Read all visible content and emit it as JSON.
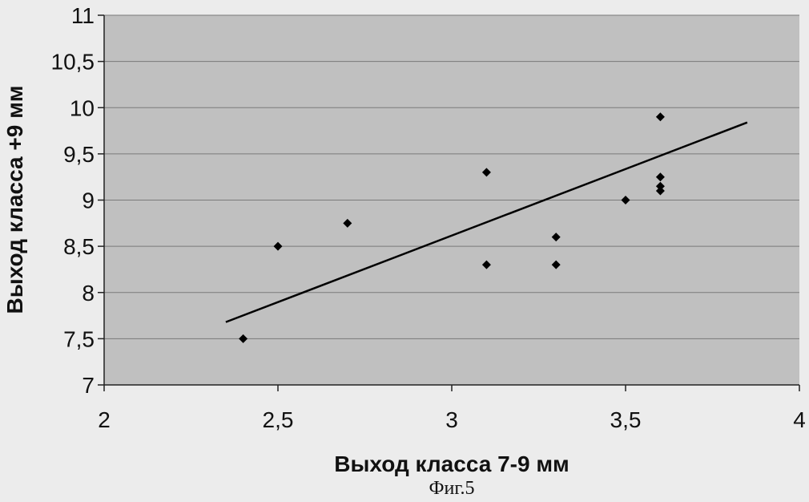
{
  "chart_data": {
    "type": "scatter",
    "xlabel": "Выход класса 7-9 мм",
    "ylabel": "Выход класса +9 мм",
    "xlim": [
      2,
      4
    ],
    "ylim": [
      7,
      11
    ],
    "x_ticks": [
      "2",
      "2,5",
      "3",
      "3,5",
      "4"
    ],
    "y_ticks": [
      "7",
      "7,5",
      "8",
      "8,5",
      "9",
      "9,5",
      "10",
      "10,5",
      "11"
    ],
    "grid": "horizontal",
    "points": [
      {
        "x": 2.4,
        "y": 7.5
      },
      {
        "x": 2.5,
        "y": 8.5
      },
      {
        "x": 2.7,
        "y": 8.75
      },
      {
        "x": 3.1,
        "y": 9.3
      },
      {
        "x": 3.1,
        "y": 8.3
      },
      {
        "x": 3.3,
        "y": 8.6
      },
      {
        "x": 3.3,
        "y": 8.3
      },
      {
        "x": 3.5,
        "y": 9.0
      },
      {
        "x": 3.6,
        "y": 9.9
      },
      {
        "x": 3.6,
        "y": 9.25
      },
      {
        "x": 3.6,
        "y": 9.15
      },
      {
        "x": 3.6,
        "y": 9.1
      }
    ],
    "trendline": {
      "x": [
        2.35,
        3.85
      ],
      "y": [
        7.68,
        9.84
      ]
    },
    "colors": {
      "plot_background": "#c0c0c0",
      "marker": "#000000",
      "trendline": "#000000",
      "gridline": "#7a7a7a"
    }
  },
  "caption": "Фиг.5"
}
